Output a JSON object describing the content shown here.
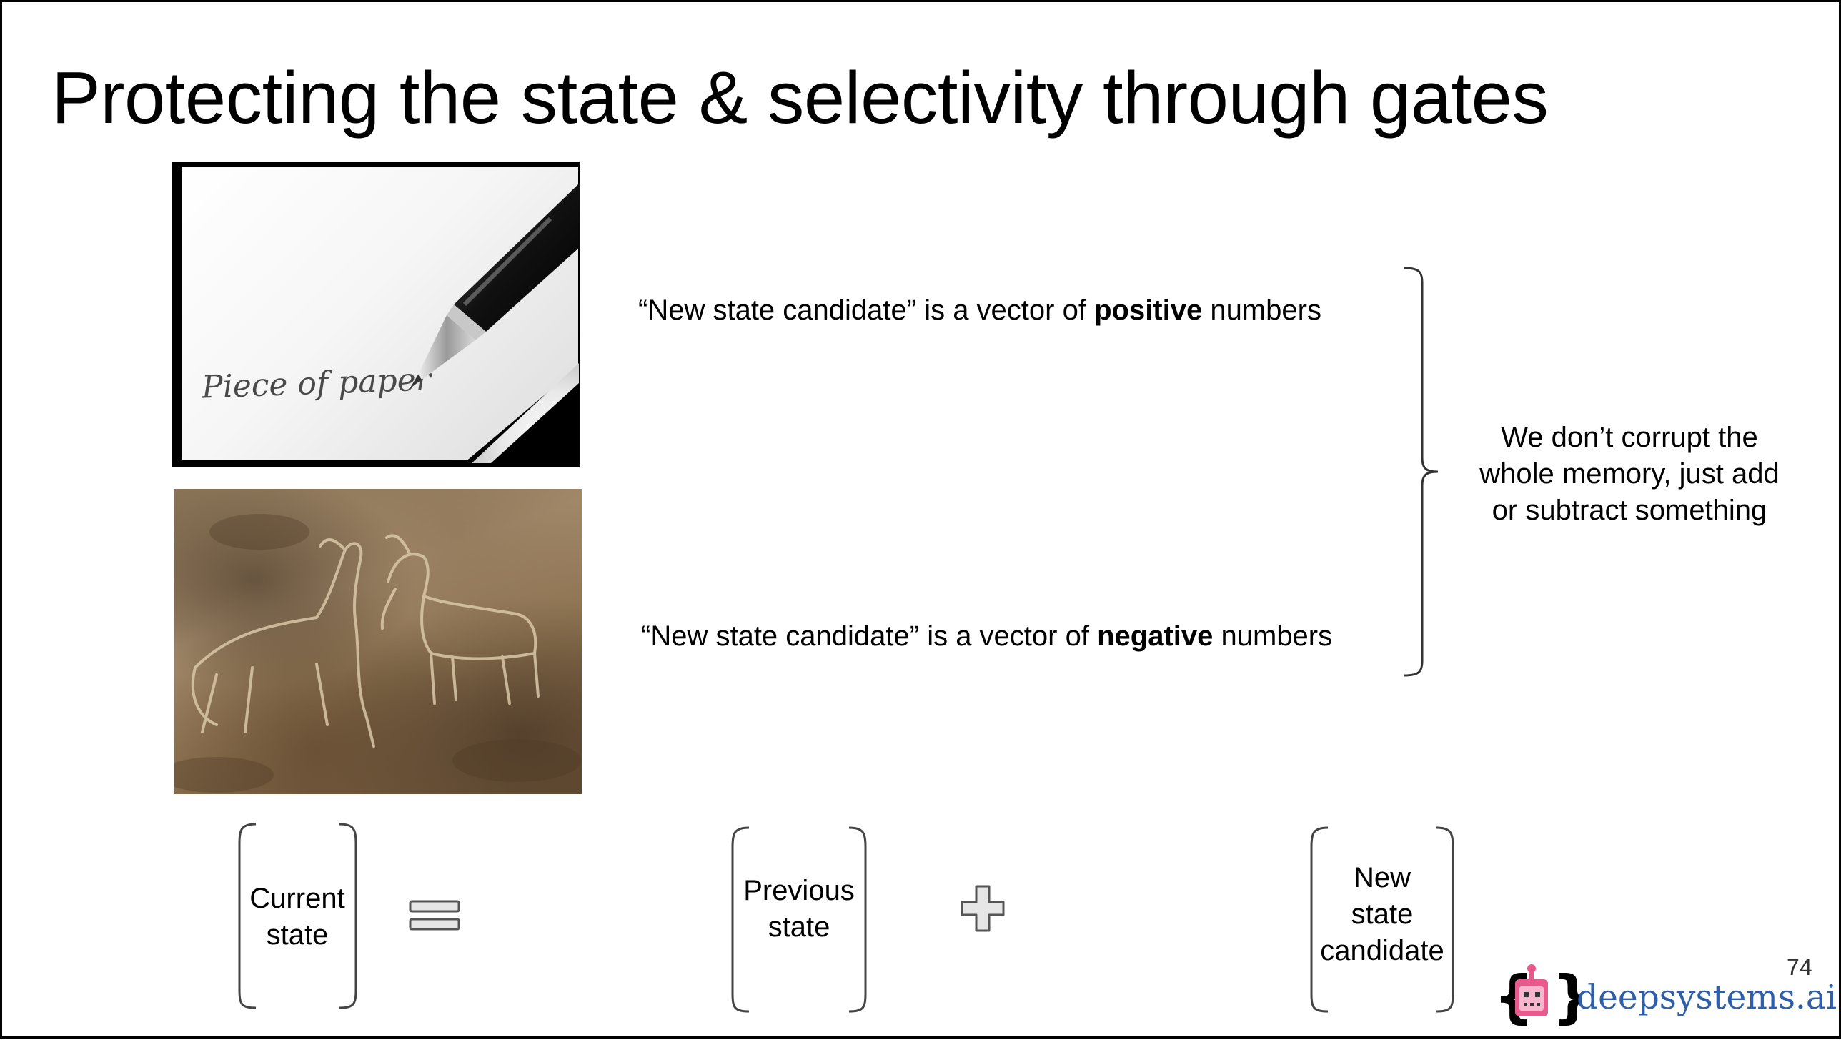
{
  "slide": {
    "title": "Protecting the state & selectivity through gates",
    "page_number": "74"
  },
  "images": {
    "paper": {
      "handwriting": "Piece of paper",
      "name": "paper-pen-icon"
    },
    "rock": {
      "name": "rock-carving-image"
    }
  },
  "statements": {
    "positive": {
      "before": "“New state candidate” is a vector of ",
      "bold": "positive",
      "after": " numbers"
    },
    "negative": {
      "before": "“New state candidate” is a vector of ",
      "bold": "negative",
      "after": " numbers"
    }
  },
  "side_note": "We don’t corrupt the whole memory, just add or subtract something",
  "equation": {
    "current": [
      "Current",
      "state"
    ],
    "previous": [
      "Previous",
      "state"
    ],
    "candidate": [
      "New",
      "state",
      "candidate"
    ],
    "equals_icon": "equals-sign-icon",
    "plus_icon": "plus-sign-icon"
  },
  "logo": {
    "text": "deepsystems.ai",
    "colors": {
      "robot": "#e85a8c",
      "text": "#2f5fa8",
      "braces": "#000000"
    }
  }
}
